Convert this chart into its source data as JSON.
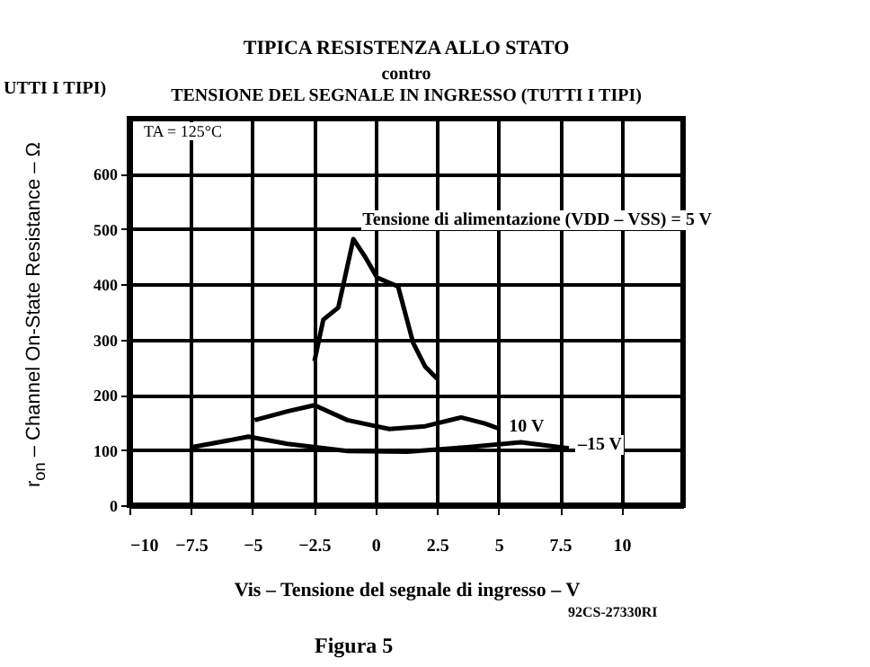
{
  "chart_data": {
    "type": "line",
    "title": "TIPICA RESISTENZA ALLO STATO",
    "subtitle": "contro\nTENSIONE DEL SEGNALE IN INGRESSO (TUTTI I TIPI)",
    "xlabel": "Vis – Tensione del segnale di ingresso – V",
    "ylabel": "r$_{on}$ – Channel On-State Resistance – Ω",
    "annotations": [
      "TA = 125°C",
      "92CS-27330RI",
      "Figura 5",
      "UTTI I TIPI)"
    ],
    "series": [
      {
        "name": "Tensione di alimentazione (VDD – VSS) = 5 V",
        "color": "#000000",
        "x": [
          -2.48,
          -2.12,
          -1.51,
          -0.9,
          -0.41,
          0.07,
          0.92,
          1.53,
          2.02,
          2.5
        ],
        "values": [
          261,
          336,
          358,
          482,
          449,
          412,
          396,
          294,
          251,
          229
        ]
      },
      {
        "name": "10 V",
        "color": "#000000",
        "x": [
          -4.91,
          -3.58,
          -2.48,
          -1.14,
          0.56,
          2.02,
          3.48,
          4.45,
          5.06
        ],
        "values": [
          154,
          170,
          181,
          154,
          138,
          143,
          159,
          148,
          138
        ]
      },
      {
        "name": "–15 V",
        "color": "#000000",
        "x": [
          -7.47,
          -5.16,
          -3.58,
          -1.14,
          1.29,
          3.72,
          5.91,
          7.86
        ],
        "values": [
          105,
          124,
          111,
          98,
          97,
          105,
          114,
          103
        ]
      }
    ],
    "xlim": [
      -10,
      12.5
    ],
    "xticks": [
      -10,
      -7.5,
      -5,
      -2.5,
      0,
      2.5,
      5,
      7.5,
      10
    ],
    "ylim": [
      0,
      700
    ],
    "yticks": [
      0,
      100,
      200,
      300,
      400,
      500,
      600
    ],
    "grid": true,
    "legend": false,
    "marker": "none",
    "line_style": "solid"
  }
}
